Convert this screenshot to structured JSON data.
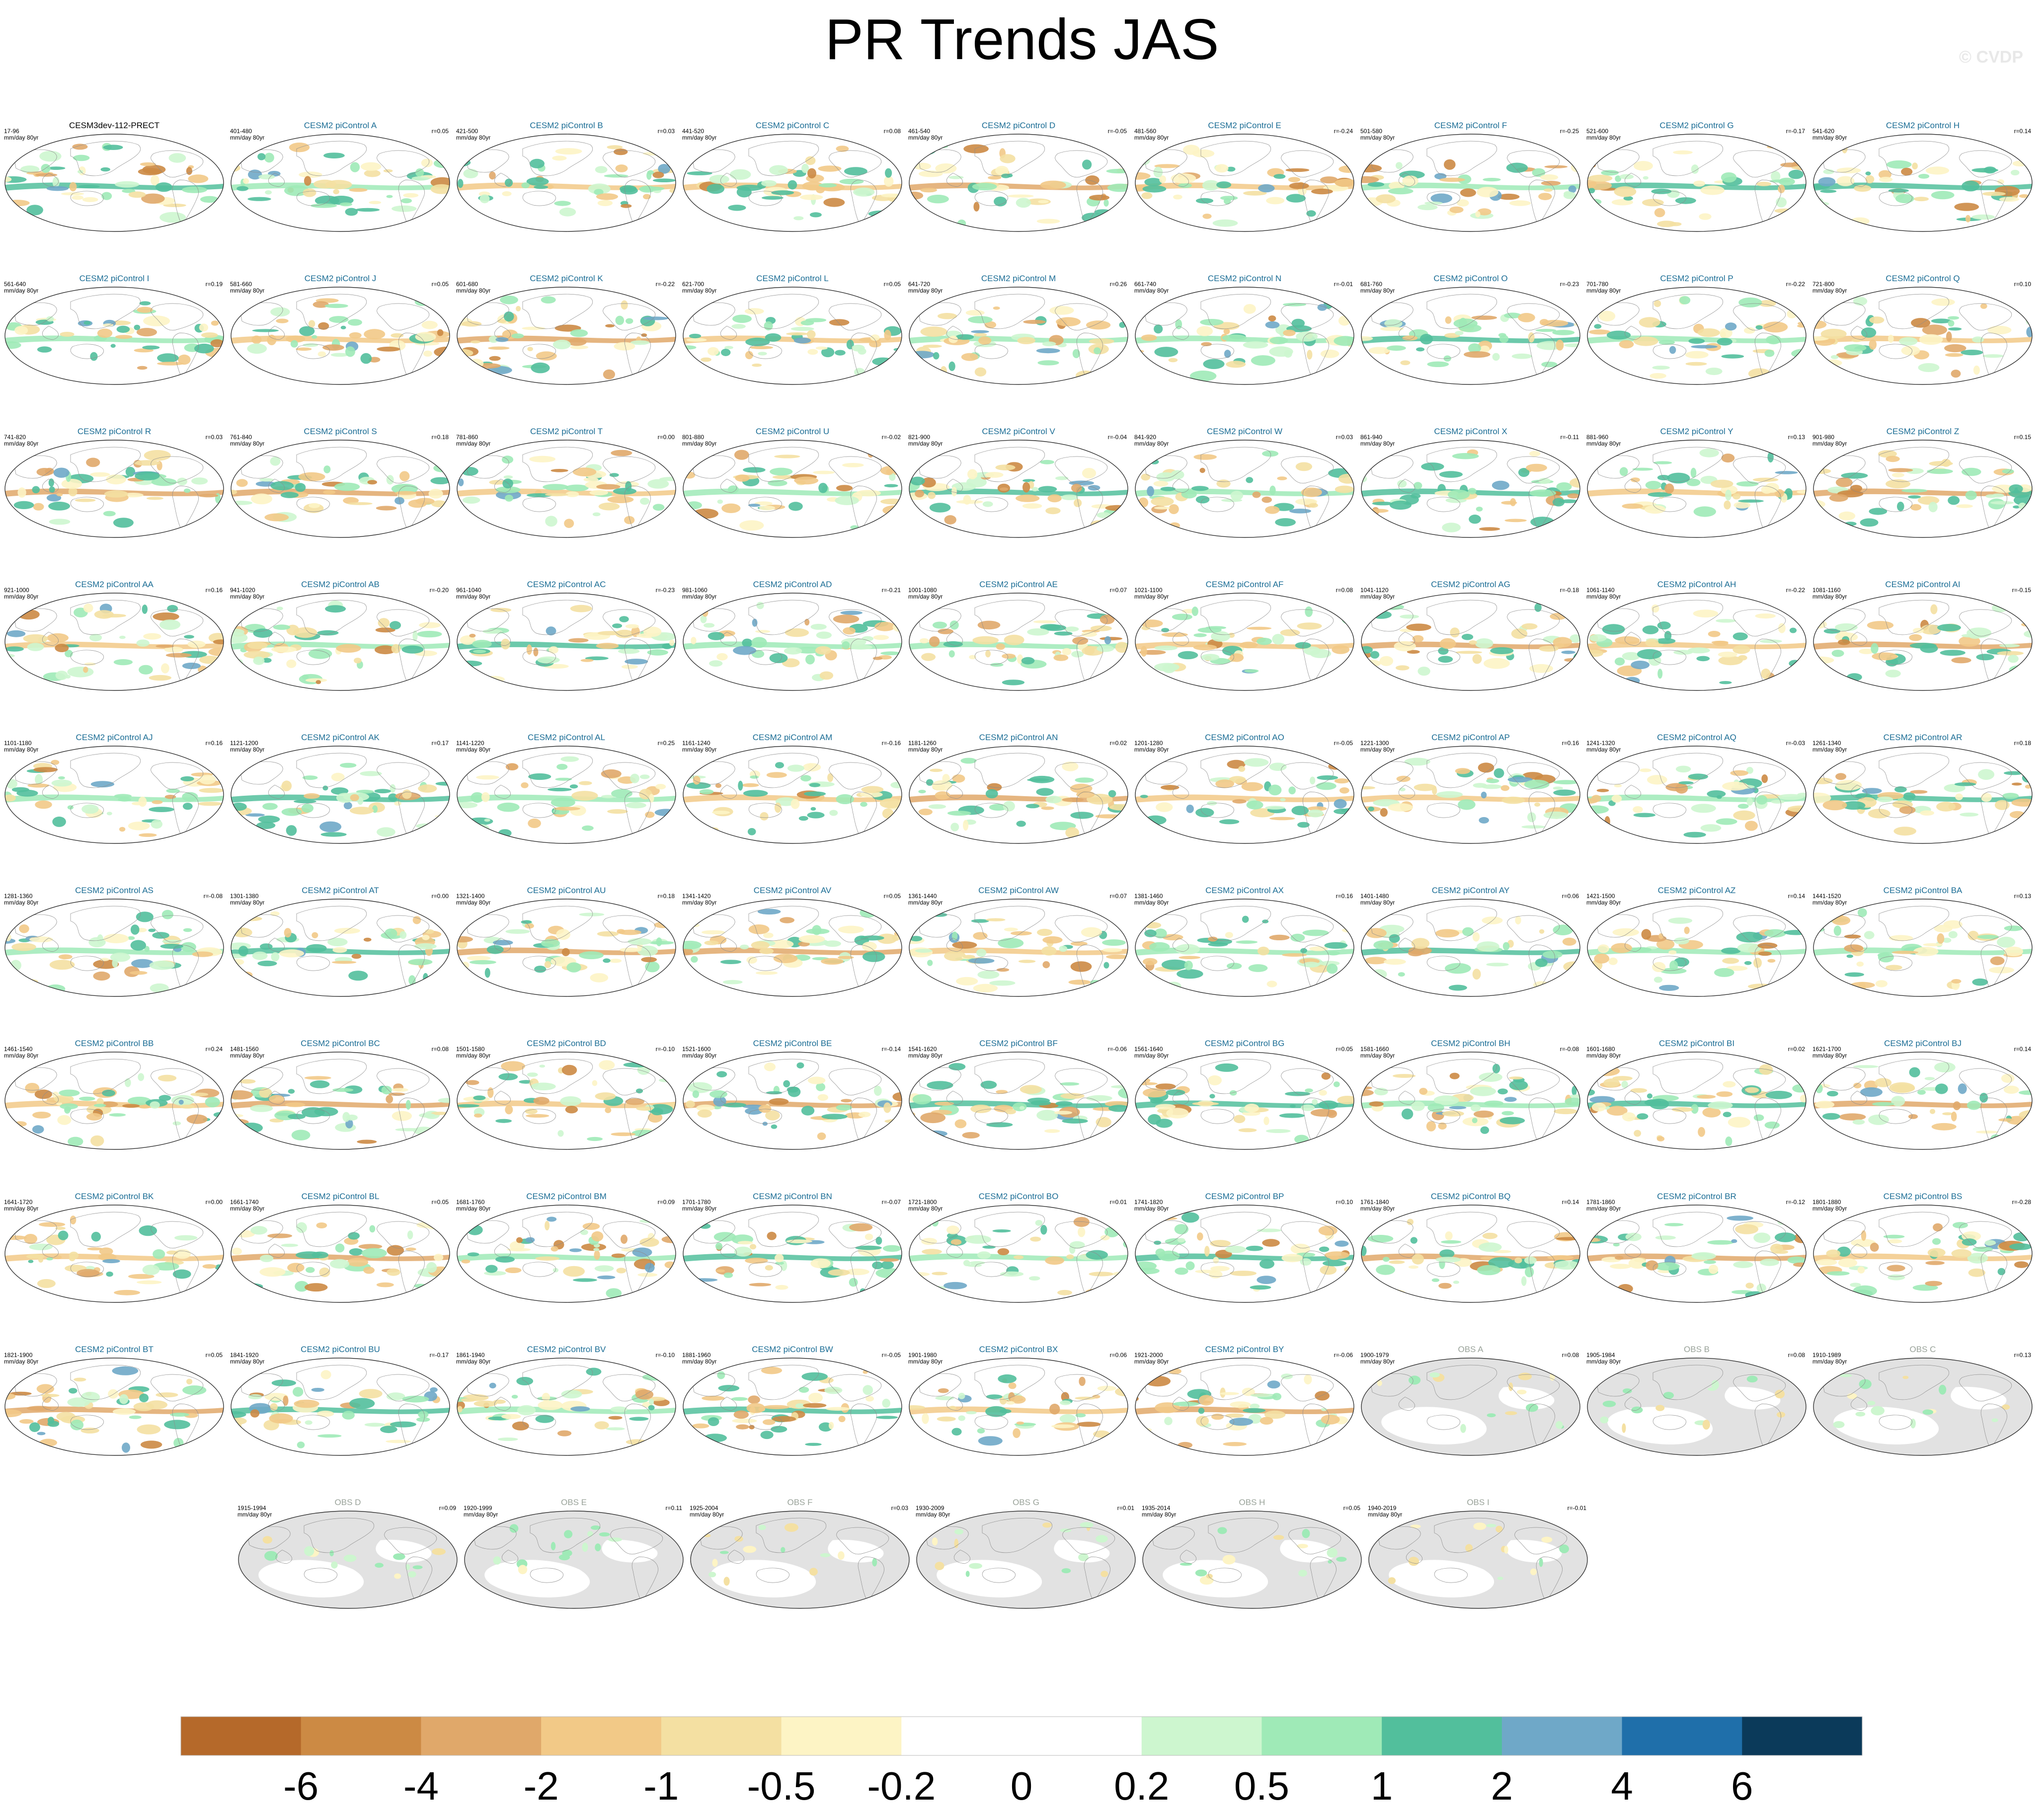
{
  "title": "PR Trends JAS",
  "watermark": "© CVDP",
  "colors": {
    "model_title": "#1b6d95",
    "obs_title": "#9aa39a",
    "first_title": "#000000",
    "land_obs": "#e2e2e2",
    "coast": "#8c8c8c"
  },
  "chart_data": {
    "type": "heatmap",
    "layout": "grid of global precipitation-trend maps with shared colorbar",
    "panels": [
      {
        "title": "CESM3dev-112-PRECT",
        "period": "17-96",
        "units": "mm/day 80yr",
        "r": "",
        "kind": "first"
      },
      {
        "title": "CESM2 piControl A",
        "period": "401-480",
        "units": "mm/day 80yr",
        "r": "r=0.05",
        "kind": "model"
      },
      {
        "title": "CESM2 piControl B",
        "period": "421-500",
        "units": "mm/day 80yr",
        "r": "r=0.03",
        "kind": "model"
      },
      {
        "title": "CESM2 piControl C",
        "period": "441-520",
        "units": "mm/day 80yr",
        "r": "r=0.08",
        "kind": "model"
      },
      {
        "title": "CESM2 piControl D",
        "period": "461-540",
        "units": "mm/day 80yr",
        "r": "r=-0.05",
        "kind": "model"
      },
      {
        "title": "CESM2 piControl E",
        "period": "481-560",
        "units": "mm/day 80yr",
        "r": "r=-0.24",
        "kind": "model"
      },
      {
        "title": "CESM2 piControl F",
        "period": "501-580",
        "units": "mm/day 80yr",
        "r": "r=-0.25",
        "kind": "model"
      },
      {
        "title": "CESM2 piControl G",
        "period": "521-600",
        "units": "mm/day 80yr",
        "r": "r=-0.17",
        "kind": "model"
      },
      {
        "title": "CESM2 piControl H",
        "period": "541-620",
        "units": "mm/day 80yr",
        "r": "r=0.14",
        "kind": "model"
      },
      {
        "title": "CESM2 piControl I",
        "period": "561-640",
        "units": "mm/day 80yr",
        "r": "r=0.19",
        "kind": "model"
      },
      {
        "title": "CESM2 piControl J",
        "period": "581-660",
        "units": "mm/day 80yr",
        "r": "r=0.05",
        "kind": "model"
      },
      {
        "title": "CESM2 piControl K",
        "period": "601-680",
        "units": "mm/day 80yr",
        "r": "r=-0.22",
        "kind": "model"
      },
      {
        "title": "CESM2 piControl L",
        "period": "621-700",
        "units": "mm/day 80yr",
        "r": "r=0.05",
        "kind": "model"
      },
      {
        "title": "CESM2 piControl M",
        "period": "641-720",
        "units": "mm/day 80yr",
        "r": "r=0.26",
        "kind": "model"
      },
      {
        "title": "CESM2 piControl N",
        "period": "661-740",
        "units": "mm/day 80yr",
        "r": "r=-0.01",
        "kind": "model"
      },
      {
        "title": "CESM2 piControl O",
        "period": "681-760",
        "units": "mm/day 80yr",
        "r": "r=-0.23",
        "kind": "model"
      },
      {
        "title": "CESM2 piControl P",
        "period": "701-780",
        "units": "mm/day 80yr",
        "r": "r=-0.22",
        "kind": "model"
      },
      {
        "title": "CESM2 piControl Q",
        "period": "721-800",
        "units": "mm/day 80yr",
        "r": "r=0.10",
        "kind": "model"
      },
      {
        "title": "CESM2 piControl R",
        "period": "741-820",
        "units": "mm/day 80yr",
        "r": "r=0.03",
        "kind": "model"
      },
      {
        "title": "CESM2 piControl S",
        "period": "761-840",
        "units": "mm/day 80yr",
        "r": "r=0.18",
        "kind": "model"
      },
      {
        "title": "CESM2 piControl T",
        "period": "781-860",
        "units": "mm/day 80yr",
        "r": "r=0.00",
        "kind": "model"
      },
      {
        "title": "CESM2 piControl U",
        "period": "801-880",
        "units": "mm/day 80yr",
        "r": "r=-0.02",
        "kind": "model"
      },
      {
        "title": "CESM2 piControl V",
        "period": "821-900",
        "units": "mm/day 80yr",
        "r": "r=-0.04",
        "kind": "model"
      },
      {
        "title": "CESM2 piControl W",
        "period": "841-920",
        "units": "mm/day 80yr",
        "r": "r=0.03",
        "kind": "model"
      },
      {
        "title": "CESM2 piControl X",
        "period": "861-940",
        "units": "mm/day 80yr",
        "r": "r=-0.11",
        "kind": "model"
      },
      {
        "title": "CESM2 piControl Y",
        "period": "881-960",
        "units": "mm/day 80yr",
        "r": "r=0.13",
        "kind": "model"
      },
      {
        "title": "CESM2 piControl Z",
        "period": "901-980",
        "units": "mm/day 80yr",
        "r": "r=0.15",
        "kind": "model"
      },
      {
        "title": "CESM2 piControl AA",
        "period": "921-1000",
        "units": "mm/day 80yr",
        "r": "r=0.16",
        "kind": "model"
      },
      {
        "title": "CESM2 piControl AB",
        "period": "941-1020",
        "units": "mm/day 80yr",
        "r": "r=-0.20",
        "kind": "model"
      },
      {
        "title": "CESM2 piControl AC",
        "period": "961-1040",
        "units": "mm/day 80yr",
        "r": "r=-0.23",
        "kind": "model"
      },
      {
        "title": "CESM2 piControl AD",
        "period": "981-1060",
        "units": "mm/day 80yr",
        "r": "r=-0.21",
        "kind": "model"
      },
      {
        "title": "CESM2 piControl AE",
        "period": "1001-1080",
        "units": "mm/day 80yr",
        "r": "r=0.07",
        "kind": "model"
      },
      {
        "title": "CESM2 piControl AF",
        "period": "1021-1100",
        "units": "mm/day 80yr",
        "r": "r=0.08",
        "kind": "model"
      },
      {
        "title": "CESM2 piControl AG",
        "period": "1041-1120",
        "units": "mm/day 80yr",
        "r": "r=-0.18",
        "kind": "model"
      },
      {
        "title": "CESM2 piControl AH",
        "period": "1061-1140",
        "units": "mm/day 80yr",
        "r": "r=-0.22",
        "kind": "model"
      },
      {
        "title": "CESM2 piControl AI",
        "period": "1081-1160",
        "units": "mm/day 80yr",
        "r": "r=-0.15",
        "kind": "model"
      },
      {
        "title": "CESM2 piControl AJ",
        "period": "1101-1180",
        "units": "mm/day 80yr",
        "r": "r=0.16",
        "kind": "model"
      },
      {
        "title": "CESM2 piControl AK",
        "period": "1121-1200",
        "units": "mm/day 80yr",
        "r": "r=0.17",
        "kind": "model"
      },
      {
        "title": "CESM2 piControl AL",
        "period": "1141-1220",
        "units": "mm/day 80yr",
        "r": "r=0.25",
        "kind": "model"
      },
      {
        "title": "CESM2 piControl AM",
        "period": "1161-1240",
        "units": "mm/day 80yr",
        "r": "r=-0.16",
        "kind": "model"
      },
      {
        "title": "CESM2 piControl AN",
        "period": "1181-1260",
        "units": "mm/day 80yr",
        "r": "r=0.02",
        "kind": "model"
      },
      {
        "title": "CESM2 piControl AO",
        "period": "1201-1280",
        "units": "mm/day 80yr",
        "r": "r=-0.05",
        "kind": "model"
      },
      {
        "title": "CESM2 piControl AP",
        "period": "1221-1300",
        "units": "mm/day 80yr",
        "r": "r=0.16",
        "kind": "model"
      },
      {
        "title": "CESM2 piControl AQ",
        "period": "1241-1320",
        "units": "mm/day 80yr",
        "r": "r=-0.03",
        "kind": "model"
      },
      {
        "title": "CESM2 piControl AR",
        "period": "1261-1340",
        "units": "mm/day 80yr",
        "r": "r=0.18",
        "kind": "model"
      },
      {
        "title": "CESM2 piControl AS",
        "period": "1281-1360",
        "units": "mm/day 80yr",
        "r": "r=-0.08",
        "kind": "model"
      },
      {
        "title": "CESM2 piControl AT",
        "period": "1301-1380",
        "units": "mm/day 80yr",
        "r": "r=0.00",
        "kind": "model"
      },
      {
        "title": "CESM2 piControl AU",
        "period": "1321-1400",
        "units": "mm/day 80yr",
        "r": "r=0.18",
        "kind": "model"
      },
      {
        "title": "CESM2 piControl AV",
        "period": "1341-1420",
        "units": "mm/day 80yr",
        "r": "r=0.05",
        "kind": "model"
      },
      {
        "title": "CESM2 piControl AW",
        "period": "1361-1440",
        "units": "mm/day 80yr",
        "r": "r=0.07",
        "kind": "model"
      },
      {
        "title": "CESM2 piControl AX",
        "period": "1381-1460",
        "units": "mm/day 80yr",
        "r": "r=0.16",
        "kind": "model"
      },
      {
        "title": "CESM2 piControl AY",
        "period": "1401-1480",
        "units": "mm/day 80yr",
        "r": "r=0.06",
        "kind": "model"
      },
      {
        "title": "CESM2 piControl AZ",
        "period": "1421-1500",
        "units": "mm/day 80yr",
        "r": "r=0.14",
        "kind": "model"
      },
      {
        "title": "CESM2 piControl BA",
        "period": "1441-1520",
        "units": "mm/day 80yr",
        "r": "r=0.13",
        "kind": "model"
      },
      {
        "title": "CESM2 piControl BB",
        "period": "1461-1540",
        "units": "mm/day 80yr",
        "r": "r=0.24",
        "kind": "model"
      },
      {
        "title": "CESM2 piControl BC",
        "period": "1481-1560",
        "units": "mm/day 80yr",
        "r": "r=0.08",
        "kind": "model"
      },
      {
        "title": "CESM2 piControl BD",
        "period": "1501-1580",
        "units": "mm/day 80yr",
        "r": "r=-0.10",
        "kind": "model"
      },
      {
        "title": "CESM2 piControl BE",
        "period": "1521-1600",
        "units": "mm/day 80yr",
        "r": "r=-0.14",
        "kind": "model"
      },
      {
        "title": "CESM2 piControl BF",
        "period": "1541-1620",
        "units": "mm/day 80yr",
        "r": "r=-0.06",
        "kind": "model"
      },
      {
        "title": "CESM2 piControl BG",
        "period": "1561-1640",
        "units": "mm/day 80yr",
        "r": "r=0.05",
        "kind": "model"
      },
      {
        "title": "CESM2 piControl BH",
        "period": "1581-1660",
        "units": "mm/day 80yr",
        "r": "r=-0.08",
        "kind": "model"
      },
      {
        "title": "CESM2 piControl BI",
        "period": "1601-1680",
        "units": "mm/day 80yr",
        "r": "r=0.02",
        "kind": "model"
      },
      {
        "title": "CESM2 piControl BJ",
        "period": "1621-1700",
        "units": "mm/day 80yr",
        "r": "r=0.14",
        "kind": "model"
      },
      {
        "title": "CESM2 piControl BK",
        "period": "1641-1720",
        "units": "mm/day 80yr",
        "r": "r=0.00",
        "kind": "model"
      },
      {
        "title": "CESM2 piControl BL",
        "period": "1661-1740",
        "units": "mm/day 80yr",
        "r": "r=0.05",
        "kind": "model"
      },
      {
        "title": "CESM2 piControl BM",
        "period": "1681-1760",
        "units": "mm/day 80yr",
        "r": "r=0.09",
        "kind": "model"
      },
      {
        "title": "CESM2 piControl BN",
        "period": "1701-1780",
        "units": "mm/day 80yr",
        "r": "r=-0.07",
        "kind": "model"
      },
      {
        "title": "CESM2 piControl BO",
        "period": "1721-1800",
        "units": "mm/day 80yr",
        "r": "r=0.01",
        "kind": "model"
      },
      {
        "title": "CESM2 piControl BP",
        "period": "1741-1820",
        "units": "mm/day 80yr",
        "r": "r=0.10",
        "kind": "model"
      },
      {
        "title": "CESM2 piControl BQ",
        "period": "1761-1840",
        "units": "mm/day 80yr",
        "r": "r=0.14",
        "kind": "model"
      },
      {
        "title": "CESM2 piControl BR",
        "period": "1781-1860",
        "units": "mm/day 80yr",
        "r": "r=-0.12",
        "kind": "model"
      },
      {
        "title": "CESM2 piControl BS",
        "period": "1801-1880",
        "units": "mm/day 80yr",
        "r": "r=-0.28",
        "kind": "model"
      },
      {
        "title": "CESM2 piControl BT",
        "period": "1821-1900",
        "units": "mm/day 80yr",
        "r": "r=0.05",
        "kind": "model"
      },
      {
        "title": "CESM2 piControl BU",
        "period": "1841-1920",
        "units": "mm/day 80yr",
        "r": "r=-0.17",
        "kind": "model"
      },
      {
        "title": "CESM2 piControl BV",
        "period": "1861-1940",
        "units": "mm/day 80yr",
        "r": "r=-0.10",
        "kind": "model"
      },
      {
        "title": "CESM2 piControl BW",
        "period": "1881-1960",
        "units": "mm/day 80yr",
        "r": "r=-0.05",
        "kind": "model"
      },
      {
        "title": "CESM2 piControl BX",
        "period": "1901-1980",
        "units": "mm/day 80yr",
        "r": "r=0.06",
        "kind": "model"
      },
      {
        "title": "CESM2 piControl BY",
        "period": "1921-2000",
        "units": "mm/day 80yr",
        "r": "r=-0.06",
        "kind": "model"
      },
      {
        "title": "OBS A",
        "period": "1900-1979",
        "units": "mm/day 80yr",
        "r": "r=0.08",
        "kind": "obs"
      },
      {
        "title": "OBS B",
        "period": "1905-1984",
        "units": "mm/day 80yr",
        "r": "r=0.08",
        "kind": "obs"
      },
      {
        "title": "OBS C",
        "period": "1910-1989",
        "units": "mm/day 80yr",
        "r": "r=0.13",
        "kind": "obs"
      },
      {
        "title": "OBS D",
        "period": "1915-1994",
        "units": "mm/day 80yr",
        "r": "r=0.09",
        "kind": "obs"
      },
      {
        "title": "OBS E",
        "period": "1920-1999",
        "units": "mm/day 80yr",
        "r": "r=0.11",
        "kind": "obs"
      },
      {
        "title": "OBS F",
        "period": "1925-2004",
        "units": "mm/day 80yr",
        "r": "r=0.03",
        "kind": "obs"
      },
      {
        "title": "OBS G",
        "period": "1930-2009",
        "units": "mm/day 80yr",
        "r": "r=0.01",
        "kind": "obs"
      },
      {
        "title": "OBS H",
        "period": "1935-2014",
        "units": "mm/day 80yr",
        "r": "r=0.05",
        "kind": "obs"
      },
      {
        "title": "OBS I",
        "period": "1940-2019",
        "units": "mm/day 80yr",
        "r": "r=-0.01",
        "kind": "obs"
      }
    ],
    "colorbar": {
      "colors": [
        "#b5692a",
        "#cc8a44",
        "#e0a86a",
        "#f2c987",
        "#f4e0a2",
        "#fdf4c5",
        "#ffffff",
        "#ffffff",
        "#cdf6cf",
        "#9feab7",
        "#52bf9c",
        "#6fa8c8",
        "#1f6faa",
        "#0b3a5a"
      ],
      "labels": [
        "-6",
        "-4",
        "-2",
        "-1",
        "-0.5",
        "-0.2",
        "0",
        "0.2",
        "0.5",
        "1",
        "2",
        "4",
        "6"
      ]
    }
  }
}
